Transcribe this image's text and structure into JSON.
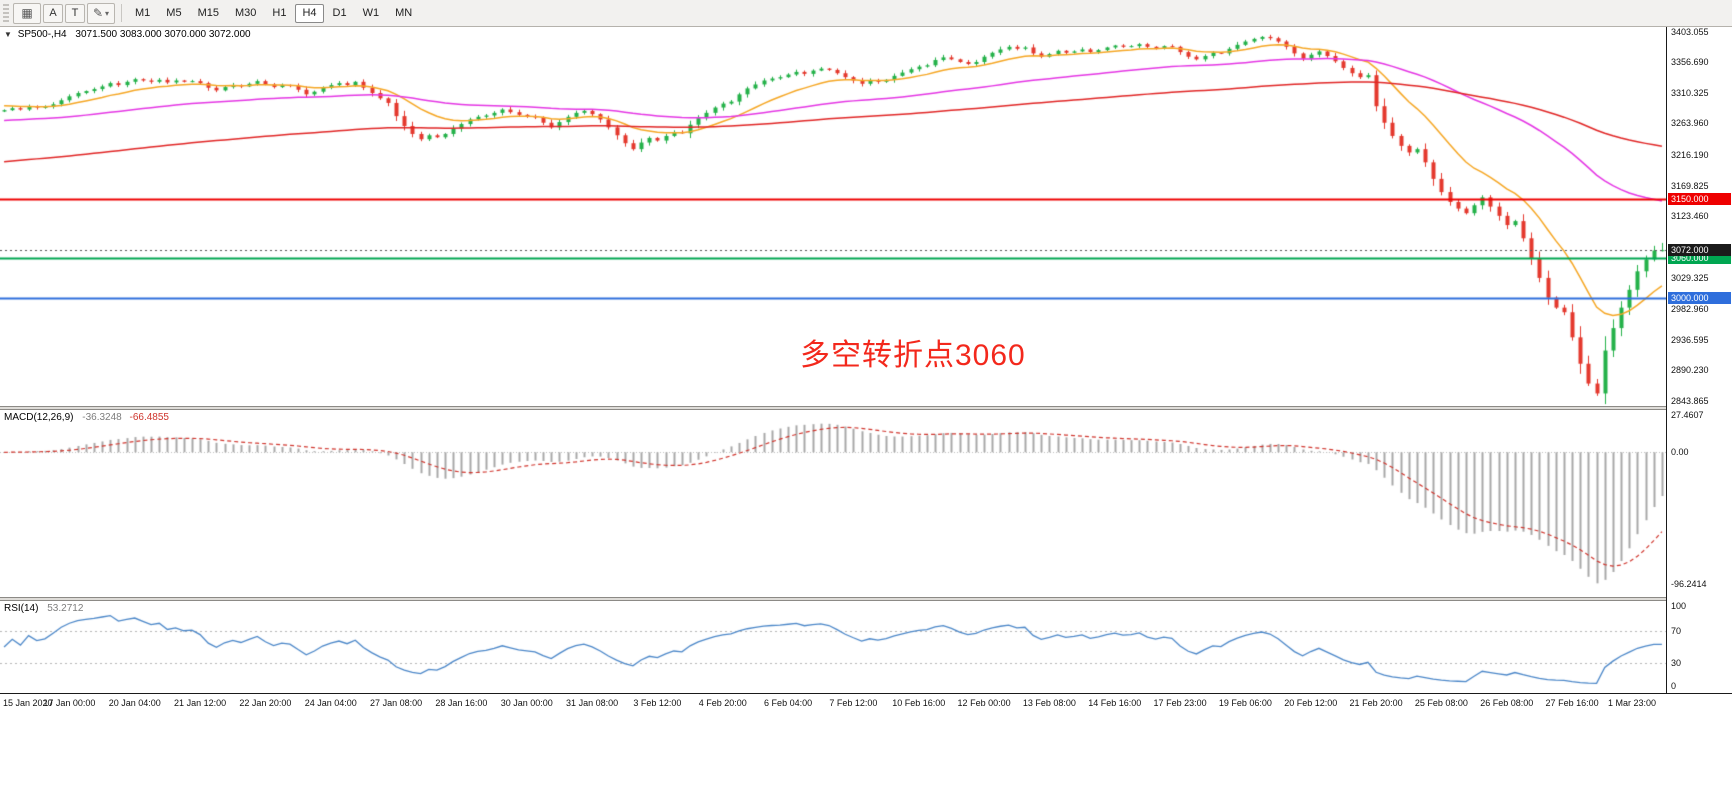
{
  "toolbar": {
    "buttons": [
      {
        "label": "A"
      },
      {
        "label": "T"
      }
    ],
    "timeframes": [
      {
        "label": "M1"
      },
      {
        "label": "M5"
      },
      {
        "label": "M15"
      },
      {
        "label": "M30"
      },
      {
        "label": "H1"
      },
      {
        "label": "H4",
        "active": true
      },
      {
        "label": "D1"
      },
      {
        "label": "W1"
      },
      {
        "label": "MN"
      }
    ]
  },
  "icons": {
    "grid": "▦",
    "pencil": "✎",
    "caret_down": "▾",
    "collapse": "▼"
  },
  "main": {
    "symbol": "SP500-,H4",
    "ohlc": "3071.500 3083.000 3070.000 3072.000",
    "annotation": "多空转折点3060",
    "y_ticks": [
      {
        "label": "3403.055",
        "value": 3403.055
      },
      {
        "label": "3356.690",
        "value": 3356.69
      },
      {
        "label": "3310.325",
        "value": 3310.325
      },
      {
        "label": "3263.960",
        "value": 3263.96
      },
      {
        "label": "3216.190",
        "value": 3216.19
      },
      {
        "label": "3169.825",
        "value": 3169.825
      },
      {
        "label": "3123.460",
        "value": 3123.46
      },
      {
        "label": "3029.325",
        "value": 3029.325
      },
      {
        "label": "2982.960",
        "value": 2982.96
      },
      {
        "label": "2936.595",
        "value": 2936.595
      },
      {
        "label": "2890.230",
        "value": 2890.23
      },
      {
        "label": "2843.865",
        "value": 2843.865
      }
    ],
    "hlines": [
      {
        "label": "3150.000",
        "value": 3150,
        "color": "#ee0000"
      },
      {
        "label": "3060.000",
        "value": 3060,
        "color": "#00a651"
      },
      {
        "label": "3000.000",
        "value": 3000,
        "color": "#2e6edc"
      }
    ],
    "current_price": {
      "label": "3072.000",
      "value": 3072,
      "color": "#1b1b1b"
    }
  },
  "macd": {
    "name": "MACD(12,26,9)",
    "value_main": "-36.3248",
    "value_signal": "-66.4855",
    "scale": [
      {
        "label": "27.4607",
        "value": 27.4607
      },
      {
        "label": "0.00",
        "value": 0
      },
      {
        "label": "-96.2414",
        "value": -96.2414
      }
    ]
  },
  "rsi": {
    "name": "RSI(14)",
    "value": "53.2712",
    "scale": [
      {
        "label": "100",
        "value": 100
      },
      {
        "label": "70",
        "value": 70
      },
      {
        "label": "30",
        "value": 30
      },
      {
        "label": "0",
        "value": 0
      }
    ],
    "levels": [
      70,
      30
    ]
  },
  "x_labels": [
    "15 Jan 2020",
    "17 Jan 00:00",
    "20 Jan 04:00",
    "21 Jan 12:00",
    "22 Jan 20:00",
    "24 Jan 04:00",
    "27 Jan 08:00",
    "28 Jan 16:00",
    "30 Jan 00:00",
    "31 Jan 08:00",
    "3 Feb 12:00",
    "4 Feb 20:00",
    "6 Feb 04:00",
    "7 Feb 12:00",
    "10 Feb 16:00",
    "12 Feb 00:00",
    "13 Feb 08:00",
    "14 Feb 16:00",
    "17 Feb 23:00",
    "19 Feb 06:00",
    "20 Feb 12:00",
    "21 Feb 20:00",
    "25 Feb 08:00",
    "26 Feb 08:00",
    "27 Feb 16:00",
    "1 Mar 23:00"
  ],
  "colors": {
    "bull": "#25b24a",
    "bear": "#e4392e",
    "ma_fast": "#f5a623",
    "ma_mid": "#e435e4",
    "ma_slow": "#e02525",
    "macd_hist": "#a9a9a9",
    "macd_signal": "#d0342c",
    "rsi_line": "#4a86c8",
    "level_dots": "#b5b5b5"
  },
  "chart_data": {
    "type": "candlestick",
    "symbol": "SP500",
    "timeframe": "H4",
    "first_open": 3282,
    "closes": [
      3284,
      3287,
      3285,
      3290,
      3288,
      3289,
      3293,
      3299,
      3305,
      3310,
      3313,
      3316,
      3320,
      3325,
      3322,
      3327,
      3331,
      3329,
      3327,
      3330,
      3326,
      3329,
      3327,
      3328,
      3325,
      3318,
      3314,
      3319,
      3322,
      3320,
      3324,
      3328,
      3323,
      3319,
      3322,
      3321,
      3315,
      3308,
      3312,
      3318,
      3322,
      3325,
      3322,
      3327,
      3318,
      3310,
      3302,
      3295,
      3275,
      3260,
      3248,
      3240,
      3246,
      3243,
      3248,
      3256,
      3263,
      3270,
      3274,
      3276,
      3280,
      3285,
      3281,
      3277,
      3275,
      3273,
      3265,
      3258,
      3266,
      3274,
      3280,
      3283,
      3278,
      3270,
      3258,
      3246,
      3234,
      3225,
      3235,
      3242,
      3238,
      3245,
      3251,
      3249,
      3262,
      3272,
      3280,
      3288,
      3294,
      3297,
      3308,
      3317,
      3323,
      3329,
      3332,
      3334,
      3338,
      3342,
      3339,
      3344,
      3347,
      3345,
      3340,
      3334,
      3329,
      3324,
      3329,
      3327,
      3330,
      3336,
      3341,
      3346,
      3350,
      3352,
      3360,
      3364,
      3361,
      3357,
      3354,
      3357,
      3365,
      3371,
      3376,
      3380,
      3377,
      3379,
      3370,
      3365,
      3369,
      3374,
      3371,
      3373,
      3376,
      3372,
      3375,
      3379,
      3382,
      3380,
      3381,
      3384,
      3380,
      3378,
      3381,
      3380,
      3372,
      3365,
      3361,
      3366,
      3371,
      3370,
      3377,
      3383,
      3388,
      3392,
      3395,
      3393,
      3388,
      3380,
      3370,
      3362,
      3368,
      3373,
      3366,
      3358,
      3348,
      3340,
      3334,
      3337,
      3290,
      3265,
      3245,
      3230,
      3220,
      3225,
      3205,
      3180,
      3160,
      3145,
      3135,
      3128,
      3140,
      3152,
      3138,
      3124,
      3110,
      3116,
      3090,
      3060,
      3030,
      3000,
      2985,
      2978,
      2940,
      2900,
      2870,
      2855,
      2920,
      2954,
      2985,
      3012,
      3040,
      3058,
      3071.5,
      3072
    ],
    "last_candle": {
      "open": 3071.5,
      "high": 3083.0,
      "low": 3070.0,
      "close": 3072.0
    },
    "y_range": [
      2836,
      3410
    ],
    "moving_averages": [
      {
        "period": 13,
        "color_key": "ma_fast",
        "seed": 3292
      },
      {
        "period": 60,
        "color_key": "ma_mid",
        "seed": 3268
      },
      {
        "period": 150,
        "color_key": "ma_slow",
        "seed": 3205
      }
    ],
    "macd_params": [
      12,
      26,
      9
    ],
    "rsi_period": 14
  }
}
